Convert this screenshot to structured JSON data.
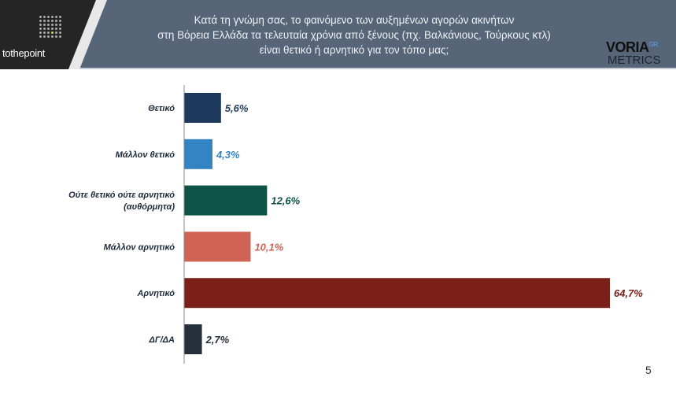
{
  "header": {
    "title_lines": [
      "Κατά τη γνώμη σας, το φαινόμενο των αυξημένων αγορών ακινήτων",
      "στη Βόρεια Ελλάδα τα τελευταία χρόνια από ξένους (πχ. Βαλκάνιους, Τούρκους κτλ)",
      "είναι θετικό ή αρνητικό για τον τόπο μας;"
    ],
    "logo_left": "tothepoint",
    "logo_right_top": "VORIA",
    "logo_right_sup": "GR",
    "logo_right_bottom": "METRICS"
  },
  "page_number": "5",
  "chart_data": {
    "type": "bar",
    "orientation": "horizontal",
    "categories": [
      [
        "Θετικό"
      ],
      [
        "Μάλλον θετικό"
      ],
      [
        "Ούτε θετικό ούτε αρνητικό",
        "(αυθόρμητα)"
      ],
      [
        "Μάλλον αρνητικό"
      ],
      [
        "Αρνητικό"
      ],
      [
        "ΔΓ/ΔΑ"
      ]
    ],
    "values": [
      5.6,
      4.3,
      12.6,
      10.1,
      64.7,
      2.7
    ],
    "labels": [
      "5,6%",
      "4,3%",
      "12,6%",
      "10,1%",
      "64,7%",
      "2,7%"
    ],
    "colors": [
      "#1d3a5c",
      "#3484c4",
      "#0f5347",
      "#d06354",
      "#7a2019",
      "#25303b"
    ],
    "xlim": [
      0,
      65
    ],
    "title": "",
    "xlabel": "",
    "ylabel": ""
  }
}
